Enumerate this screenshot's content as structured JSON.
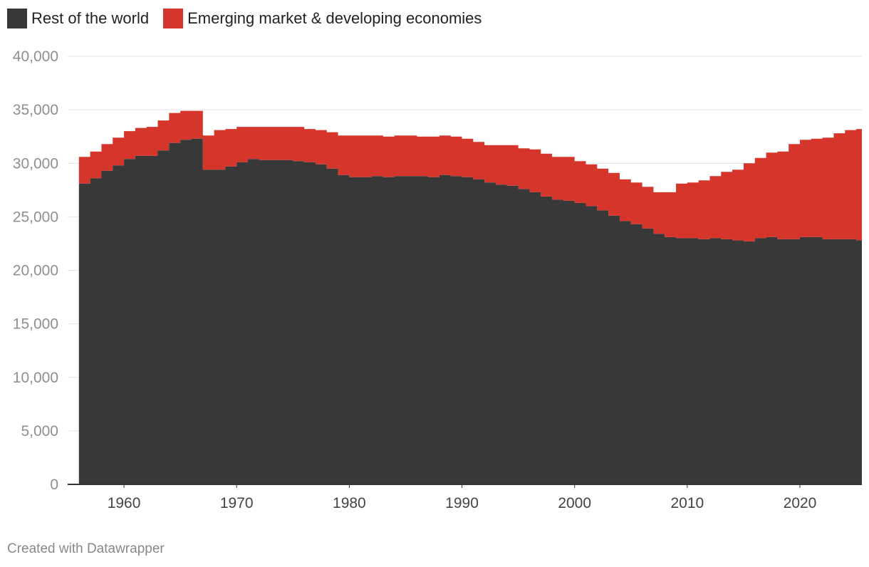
{
  "chart_data": {
    "type": "area",
    "stacked": true,
    "title": "",
    "xlabel": "",
    "ylabel": "",
    "xlim": [
      1955,
      2025.5
    ],
    "ylim": [
      0,
      40000
    ],
    "grid": true,
    "legend_position": "top-left",
    "x_ticks": [
      1960,
      1970,
      1980,
      1990,
      2000,
      2010,
      2020
    ],
    "y_ticks": [
      {
        "value": 0,
        "label": "0"
      },
      {
        "value": 5000,
        "label": "5,000"
      },
      {
        "value": 10000,
        "label": "10,000"
      },
      {
        "value": 15000,
        "label": "15,000"
      },
      {
        "value": 20000,
        "label": "20,000"
      },
      {
        "value": 25000,
        "label": "25,000"
      },
      {
        "value": 30000,
        "label": "30,000"
      },
      {
        "value": 35000,
        "label": "35,000"
      },
      {
        "value": 40000,
        "label": "40,000"
      }
    ],
    "x": [
      1956,
      1957,
      1958,
      1959,
      1960,
      1961,
      1962,
      1963,
      1964,
      1965,
      1966,
      1967,
      1968,
      1969,
      1970,
      1971,
      1972,
      1973,
      1974,
      1975,
      1976,
      1977,
      1978,
      1979,
      1980,
      1981,
      1982,
      1983,
      1984,
      1985,
      1986,
      1987,
      1988,
      1989,
      1990,
      1991,
      1992,
      1993,
      1994,
      1995,
      1996,
      1997,
      1998,
      1999,
      2000,
      2001,
      2002,
      2003,
      2004,
      2005,
      2006,
      2007,
      2008,
      2009,
      2010,
      2011,
      2012,
      2013,
      2014,
      2015,
      2016,
      2017,
      2018,
      2019,
      2020,
      2021,
      2022,
      2023,
      2024,
      2025
    ],
    "series": [
      {
        "name": "Rest of the world",
        "color": "#383838",
        "values": [
          28100,
          28600,
          29300,
          29800,
          30400,
          30700,
          30700,
          31200,
          31900,
          32200,
          32300,
          29400,
          29400,
          29700,
          30100,
          30400,
          30300,
          30300,
          30300,
          30200,
          30100,
          29900,
          29500,
          28900,
          28700,
          28700,
          28800,
          28700,
          28800,
          28800,
          28800,
          28700,
          28900,
          28800,
          28700,
          28500,
          28200,
          28000,
          27900,
          27600,
          27300,
          26900,
          26600,
          26500,
          26300,
          26000,
          25600,
          25100,
          24600,
          24300,
          23900,
          23400,
          23100,
          23000,
          23000,
          22900,
          23000,
          22900,
          22800,
          22700,
          23000,
          23100,
          22900,
          22900,
          23100,
          23100,
          22900,
          22900,
          22900,
          22800
        ]
      },
      {
        "name": "Emerging market & developing economies",
        "color": "#d6352b",
        "values": [
          2500,
          2500,
          2500,
          2600,
          2600,
          2600,
          2700,
          2800,
          2800,
          2700,
          2600,
          3200,
          3700,
          3500,
          3300,
          3000,
          3100,
          3100,
          3100,
          3200,
          3100,
          3200,
          3400,
          3700,
          3900,
          3900,
          3800,
          3800,
          3800,
          3800,
          3700,
          3800,
          3700,
          3700,
          3600,
          3500,
          3500,
          3700,
          3800,
          3800,
          4000,
          4000,
          4000,
          4100,
          3900,
          3900,
          3900,
          4000,
          3900,
          3900,
          3900,
          3900,
          4200,
          5100,
          5200,
          5500,
          5800,
          6300,
          6600,
          7300,
          7500,
          7900,
          8200,
          8900,
          9100,
          9200,
          9500,
          9900,
          10200,
          10400
        ]
      }
    ]
  },
  "legend": {
    "items": [
      {
        "label": "Rest of the world",
        "color": "#383838"
      },
      {
        "label": "Emerging market & developing economies",
        "color": "#d6352b"
      }
    ]
  },
  "credit": "Created with Datawrapper"
}
